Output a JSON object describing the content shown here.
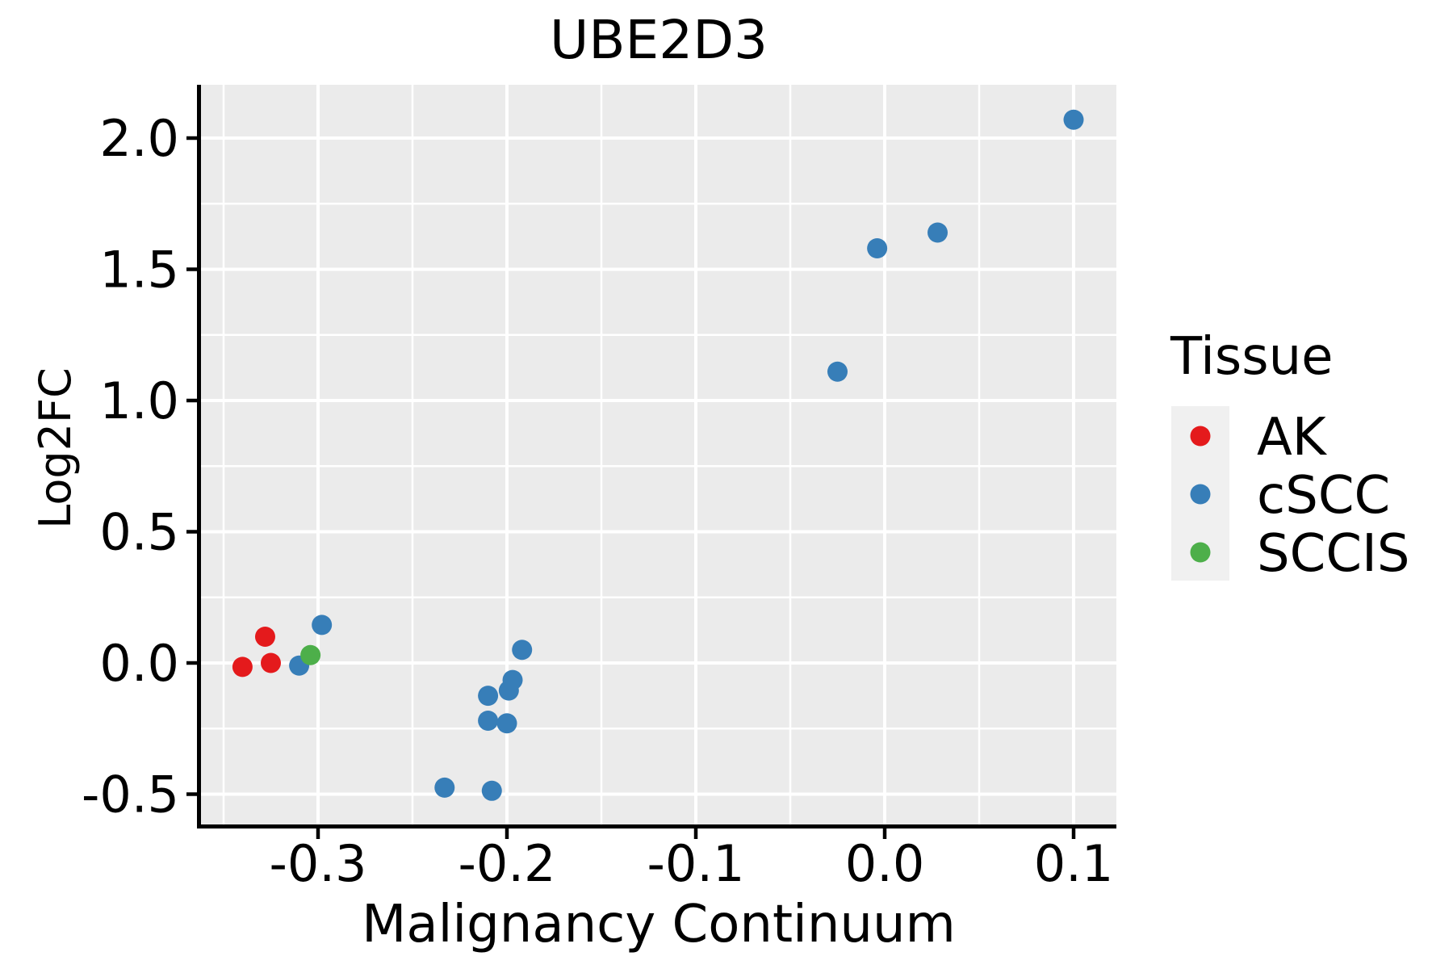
{
  "chart_data": {
    "type": "scatter",
    "title": "UBE2D3",
    "xlabel": "Malignancy Continuum",
    "ylabel": "Log2FC",
    "legend_title": "Tissue",
    "legend_position": "right",
    "grid": true,
    "panel_background_color": "#EBEBEB",
    "legend_key_color": "#F0F0F0",
    "gridline_color": "#FFFFFF",
    "axis_line_color": "#000000",
    "xlim": [
      -0.362,
      0.123
    ],
    "ylim": [
      -0.615,
      2.203
    ],
    "x_ticks": [
      -0.3,
      -0.2,
      -0.1,
      0.0,
      0.1
    ],
    "x_tick_labels": [
      "-0.3",
      "-0.2",
      "-0.1",
      "0.0",
      "0.1"
    ],
    "y_ticks": [
      -0.5,
      0.0,
      0.5,
      1.0,
      1.5,
      2.0
    ],
    "y_tick_labels": [
      "-0.5",
      "0.0",
      "0.5",
      "1.0",
      "1.5",
      "2.0"
    ],
    "series": [
      {
        "name": "AK",
        "color": "#E41A1C",
        "points": [
          [
            -0.328,
            0.1
          ],
          [
            -0.34,
            -0.015
          ],
          [
            -0.325,
            0.0
          ]
        ]
      },
      {
        "name": "cSCC",
        "color": "#377EB8",
        "points": [
          [
            -0.31,
            -0.01
          ],
          [
            -0.298,
            0.145
          ],
          [
            -0.233,
            -0.475
          ],
          [
            -0.208,
            -0.487
          ],
          [
            -0.21,
            -0.22
          ],
          [
            -0.2,
            -0.23
          ],
          [
            -0.21,
            -0.125
          ],
          [
            -0.199,
            -0.105
          ],
          [
            -0.197,
            -0.065
          ],
          [
            -0.192,
            0.05
          ],
          [
            -0.025,
            1.11
          ],
          [
            -0.004,
            1.58
          ],
          [
            0.028,
            1.64
          ],
          [
            0.1,
            2.07
          ]
        ]
      },
      {
        "name": "SCCIS",
        "color": "#4DAF4A",
        "points": [
          [
            -0.304,
            0.03
          ]
        ]
      }
    ]
  }
}
